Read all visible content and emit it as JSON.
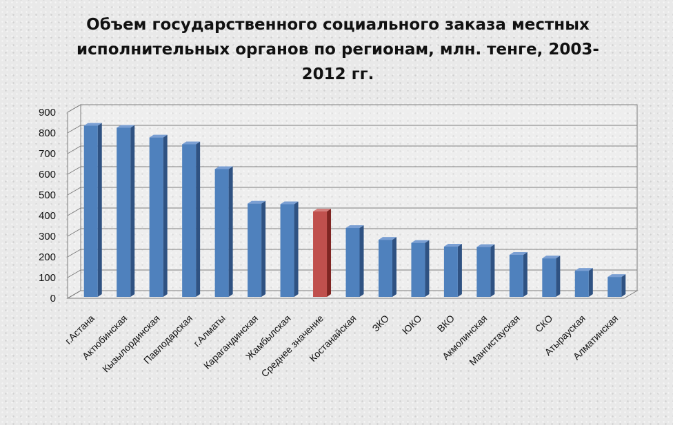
{
  "chart_data": {
    "type": "bar",
    "title": "Объем государственного социального заказа местных исполнительных органов по регионам, млн. тенге, 2003-2012 гг.",
    "categories": [
      "г.Астана",
      "Актюбинская",
      "Кызылординская",
      "Павлодарская",
      "г.Алматы",
      "Карагандинская",
      "Жамбылская",
      "Среднее значение",
      "Костанайская",
      "ЗКО",
      "ЮКО",
      "ВКО",
      "Акмолинская",
      "Мангистауская",
      "СКО",
      "Атырауская",
      "Алматинская"
    ],
    "values": [
      835,
      825,
      778,
      745,
      625,
      458,
      455,
      420,
      340,
      283,
      268,
      250,
      248,
      210,
      193,
      133,
      103
    ],
    "yticks": [
      "0",
      "100",
      "200",
      "300",
      "400",
      "500",
      "600",
      "700",
      "800",
      "900"
    ],
    "ylim": [
      0,
      900
    ],
    "grid": true,
    "legend": "none",
    "colors": {
      "bar": "#4f81bd",
      "bar_side": "#2f5282",
      "bar_top": "#7a9fd3",
      "highlight": "#c0504d",
      "highlight_side": "#7f2522",
      "highlight_top": "#d47f7c"
    },
    "highlight_category": "Среднее значение"
  }
}
